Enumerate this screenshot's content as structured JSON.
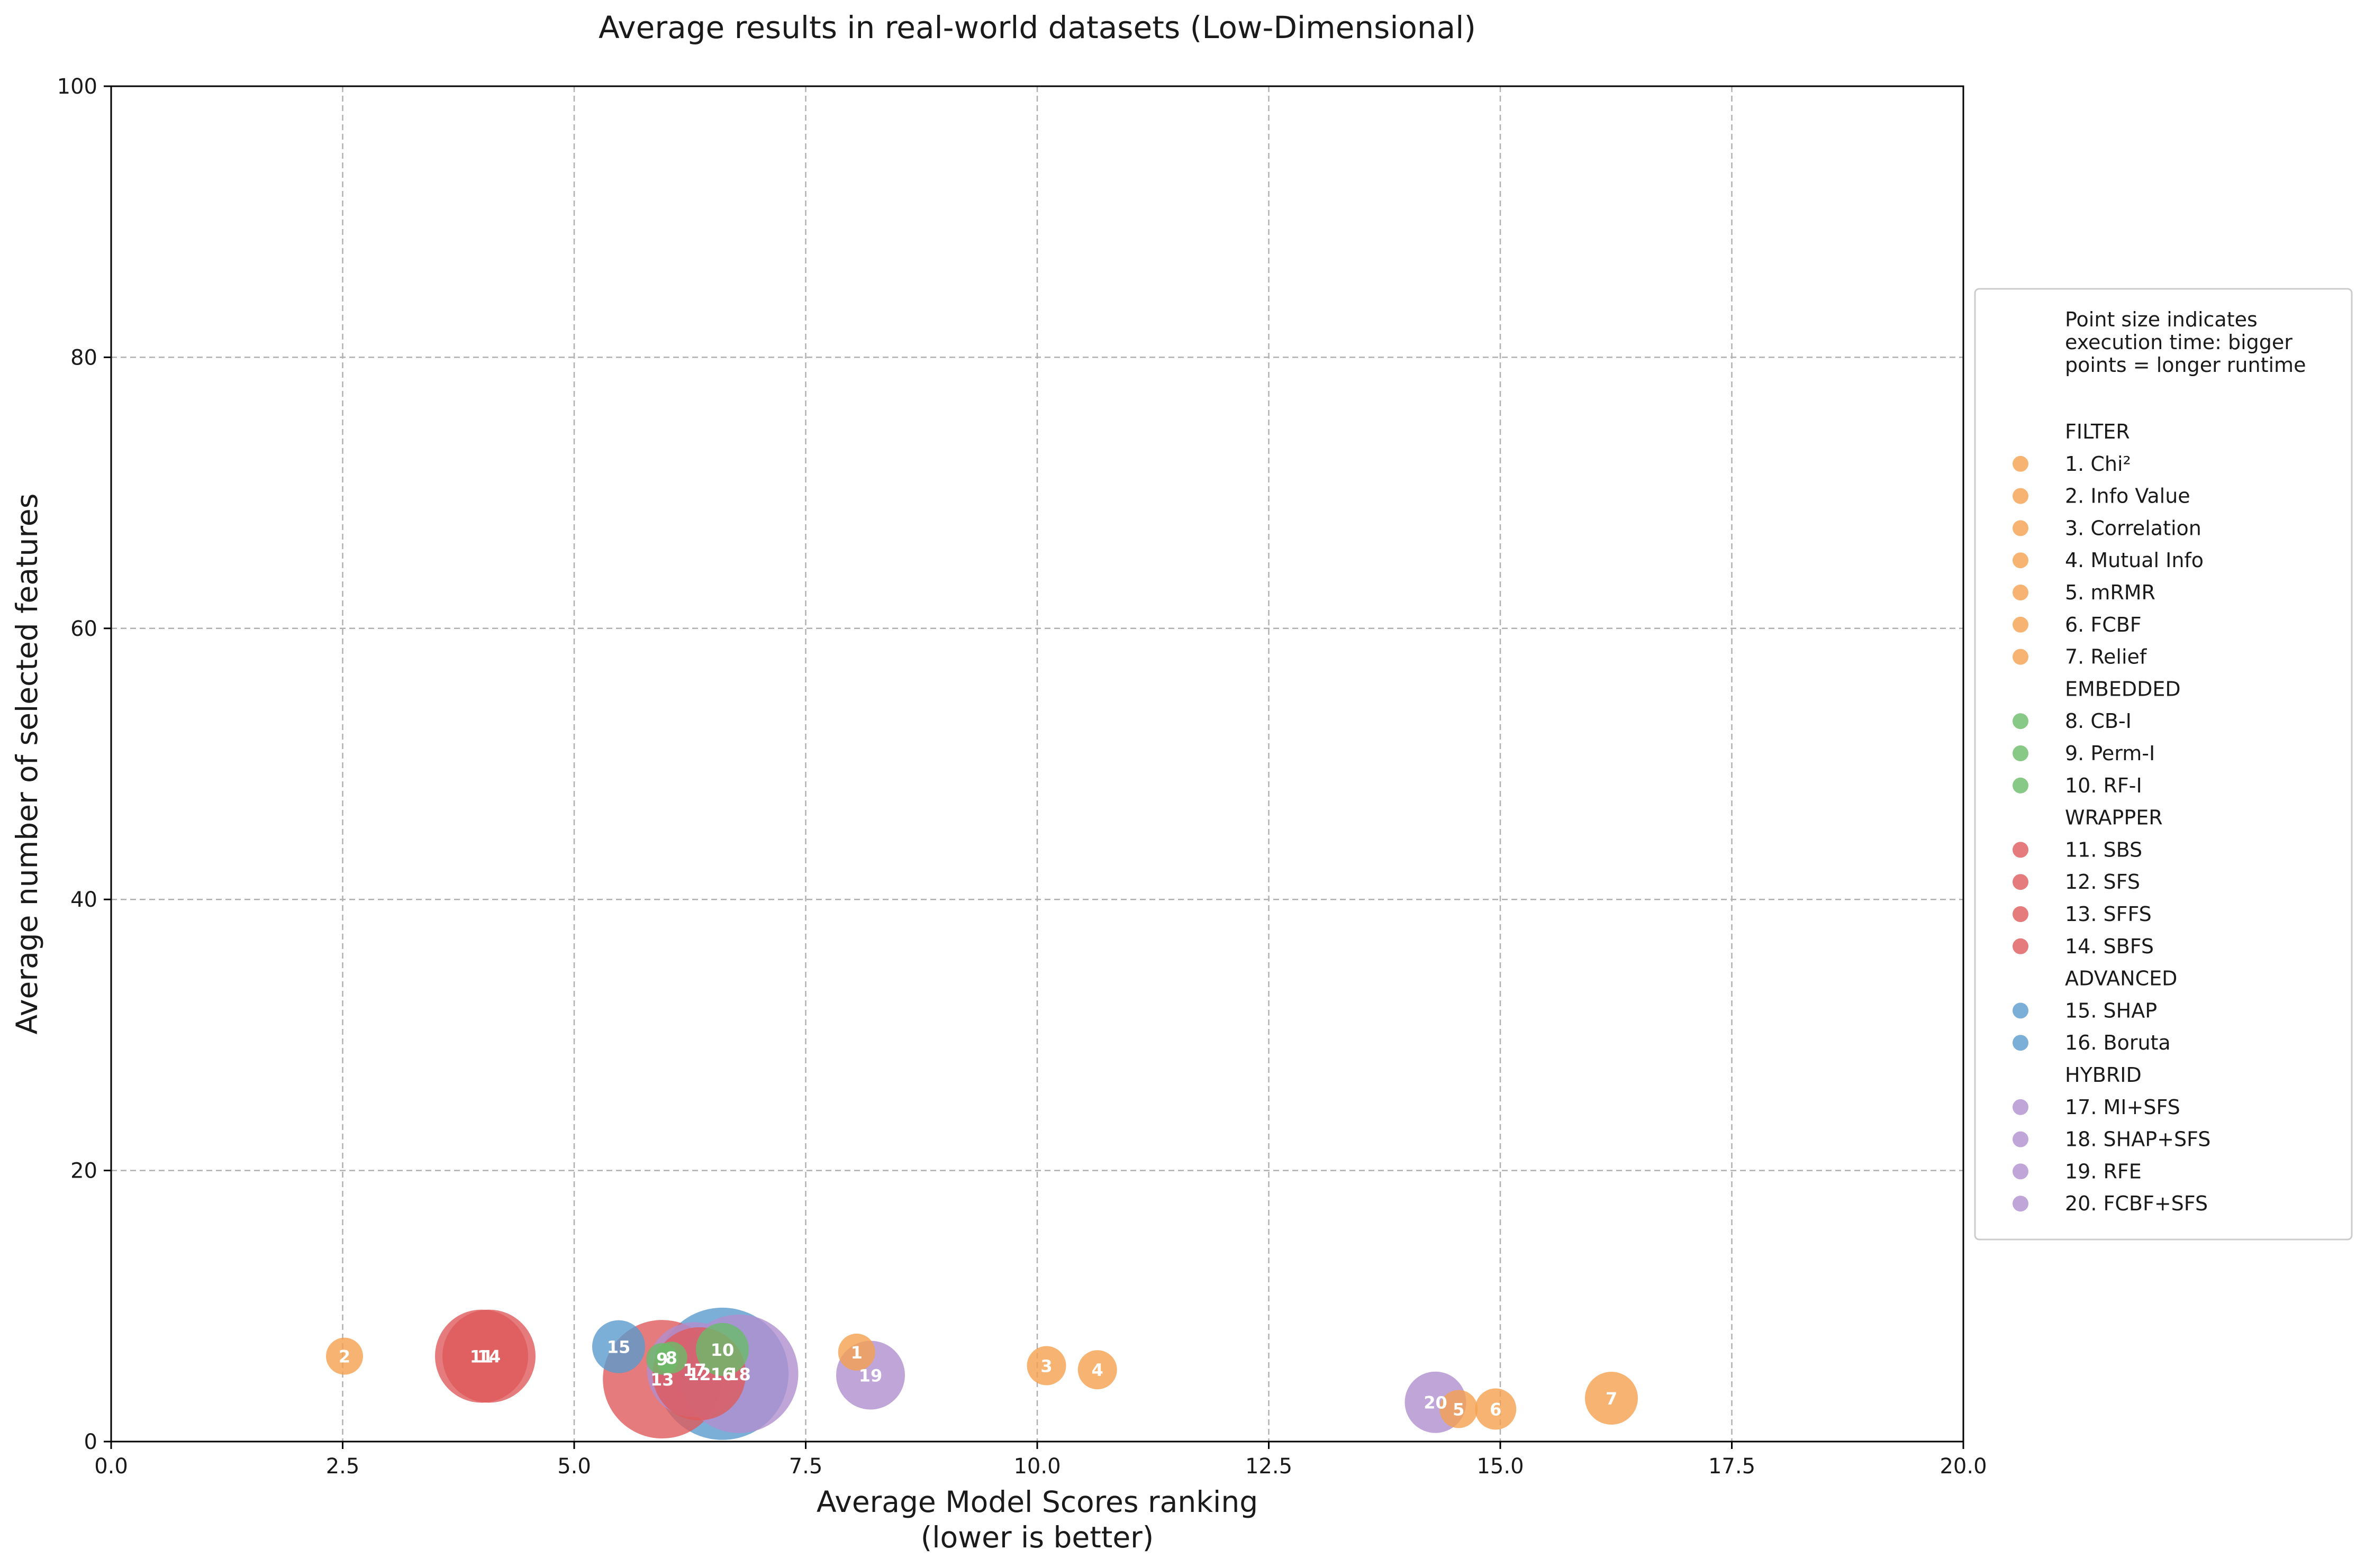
{
  "chart_data": {
    "type": "scatter",
    "title": "Average results in real-world datasets (Low-Dimensional)",
    "xlabel_line1": "Average Model Scores ranking",
    "xlabel_line2": "(lower is better)",
    "ylabel": "Average number of selected features",
    "xlim": [
      0,
      20
    ],
    "ylim": [
      0,
      100
    ],
    "xticks": [
      0.0,
      2.5,
      5.0,
      7.5,
      10.0,
      12.5,
      15.0,
      17.5,
      20.0
    ],
    "xtick_labels": [
      "0.0",
      "2.5",
      "5.0",
      "7.5",
      "10.0",
      "12.5",
      "15.0",
      "17.5",
      "20.0"
    ],
    "yticks": [
      0,
      20,
      40,
      60,
      80,
      100
    ],
    "ytick_labels": [
      "0",
      "20",
      "40",
      "60",
      "80",
      "100"
    ],
    "grid": true,
    "legend_placement": "right, outside plot",
    "legend_note": [
      "Point size indicates",
      "execution time: bigger",
      "points = longer runtime"
    ],
    "groups": [
      {
        "name": "FILTER",
        "color": "#f5a04f",
        "items": [
          "1. Chi²",
          "2. Info Value",
          "3. Correlation",
          "4. Mutual Info",
          "5. mRMR",
          "6. FCBF",
          "7. Relief"
        ]
      },
      {
        "name": "EMBEDDED",
        "color": "#6abc6a",
        "items": [
          "8. CB-I",
          "9. Perm-I",
          "10. RF-I"
        ]
      },
      {
        "name": "WRAPPER",
        "color": "#df5a5b",
        "items": [
          "11. SBS",
          "12. SFS",
          "13. SFFS",
          "14. SBFS"
        ]
      },
      {
        "name": "ADVANCED",
        "color": "#5b9bcd",
        "items": [
          "15. SHAP",
          "16. Boruta"
        ]
      },
      {
        "name": "HYBRID",
        "color": "#b08fd0",
        "items": [
          "17. MI+SFS",
          "18. SHAP+SFS",
          "19. RFE",
          "20. FCBF+SFS"
        ]
      }
    ],
    "points": [
      {
        "id": "1",
        "group": "FILTER",
        "x": 8.05,
        "y": 6.6,
        "size": 0.35
      },
      {
        "id": "2",
        "group": "FILTER",
        "x": 2.52,
        "y": 6.3,
        "size": 0.35
      },
      {
        "id": "3",
        "group": "FILTER",
        "x": 10.1,
        "y": 5.6,
        "size": 0.37
      },
      {
        "id": "4",
        "group": "FILTER",
        "x": 10.65,
        "y": 5.3,
        "size": 0.37
      },
      {
        "id": "5",
        "group": "FILTER",
        "x": 14.55,
        "y": 2.4,
        "size": 0.36
      },
      {
        "id": "6",
        "group": "FILTER",
        "x": 14.95,
        "y": 2.4,
        "size": 0.39
      },
      {
        "id": "7",
        "group": "FILTER",
        "x": 16.2,
        "y": 3.2,
        "size": 0.5
      },
      {
        "id": "8",
        "group": "EMBEDDED",
        "x": 6.05,
        "y": 6.2,
        "size": 0.3
      },
      {
        "id": "9",
        "group": "EMBEDDED",
        "x": 5.95,
        "y": 6.1,
        "size": 0.3
      },
      {
        "id": "10",
        "group": "EMBEDDED",
        "x": 6.6,
        "y": 6.8,
        "size": 0.5
      },
      {
        "id": "11",
        "group": "WRAPPER",
        "x": 4.0,
        "y": 6.3,
        "size": 0.88
      },
      {
        "id": "12",
        "group": "WRAPPER",
        "x": 6.35,
        "y": 5.0,
        "size": 0.88
      },
      {
        "id": "13",
        "group": "WRAPPER",
        "x": 5.95,
        "y": 4.6,
        "size": 1.12
      },
      {
        "id": "14",
        "group": "WRAPPER",
        "x": 4.08,
        "y": 6.3,
        "size": 0.88
      },
      {
        "id": "15",
        "group": "ADVANCED",
        "x": 5.48,
        "y": 7.0,
        "size": 0.5
      },
      {
        "id": "16",
        "group": "ADVANCED",
        "x": 6.6,
        "y": 5.0,
        "size": 1.25
      },
      {
        "id": "17",
        "group": "HYBRID",
        "x": 6.3,
        "y": 5.3,
        "size": 0.9
      },
      {
        "id": "18",
        "group": "HYBRID",
        "x": 6.78,
        "y": 5.0,
        "size": 1.12
      },
      {
        "id": "19",
        "group": "HYBRID",
        "x": 8.2,
        "y": 4.9,
        "size": 0.65
      },
      {
        "id": "20",
        "group": "HYBRID",
        "x": 14.3,
        "y": 2.9,
        "size": 0.58
      }
    ]
  }
}
